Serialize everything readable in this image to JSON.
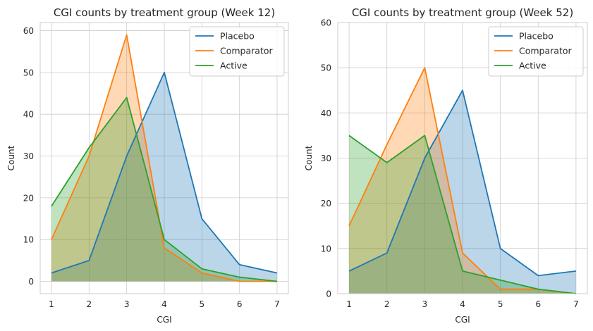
{
  "chart_data": [
    {
      "type": "area",
      "title": "CGI counts by treatment group (Week 12)",
      "xlabel": "CGI",
      "ylabel": "Count",
      "x": [
        1,
        2,
        3,
        4,
        5,
        6,
        7
      ],
      "xlim": [
        0.7,
        7.3
      ],
      "ylim": [
        -2.95,
        61.95
      ],
      "yticks": [
        0,
        10,
        20,
        30,
        40,
        50,
        60
      ],
      "grid": true,
      "legend_position": "top-right",
      "series": [
        {
          "name": "Placebo",
          "color": "#1f77b4",
          "values": [
            2,
            5,
            30,
            50,
            15,
            4,
            2
          ]
        },
        {
          "name": "Comparator",
          "color": "#ff7f0e",
          "values": [
            10,
            30,
            59,
            8,
            2,
            0,
            0
          ]
        },
        {
          "name": "Active",
          "color": "#2ca02c",
          "values": [
            18,
            32,
            44,
            10,
            3,
            1,
            0
          ]
        }
      ]
    },
    {
      "type": "area",
      "title": "CGI counts by treatment group (Week 52)",
      "xlabel": "CGI",
      "ylabel": "Count",
      "x": [
        1,
        2,
        3,
        4,
        5,
        6,
        7
      ],
      "xlim": [
        0.7,
        7.3
      ],
      "ylim": [
        0,
        60
      ],
      "yticks": [
        0,
        10,
        20,
        30,
        40,
        50,
        60
      ],
      "grid": true,
      "legend_position": "top-right",
      "series": [
        {
          "name": "Placebo",
          "color": "#1f77b4",
          "values": [
            5,
            9,
            30,
            45,
            10,
            4,
            5
          ]
        },
        {
          "name": "Comparator",
          "color": "#ff7f0e",
          "values": [
            15,
            33,
            50,
            9,
            1,
            1,
            0
          ]
        },
        {
          "name": "Active",
          "color": "#2ca02c",
          "values": [
            35,
            29,
            35,
            5,
            3,
            1,
            0
          ]
        }
      ]
    }
  ]
}
